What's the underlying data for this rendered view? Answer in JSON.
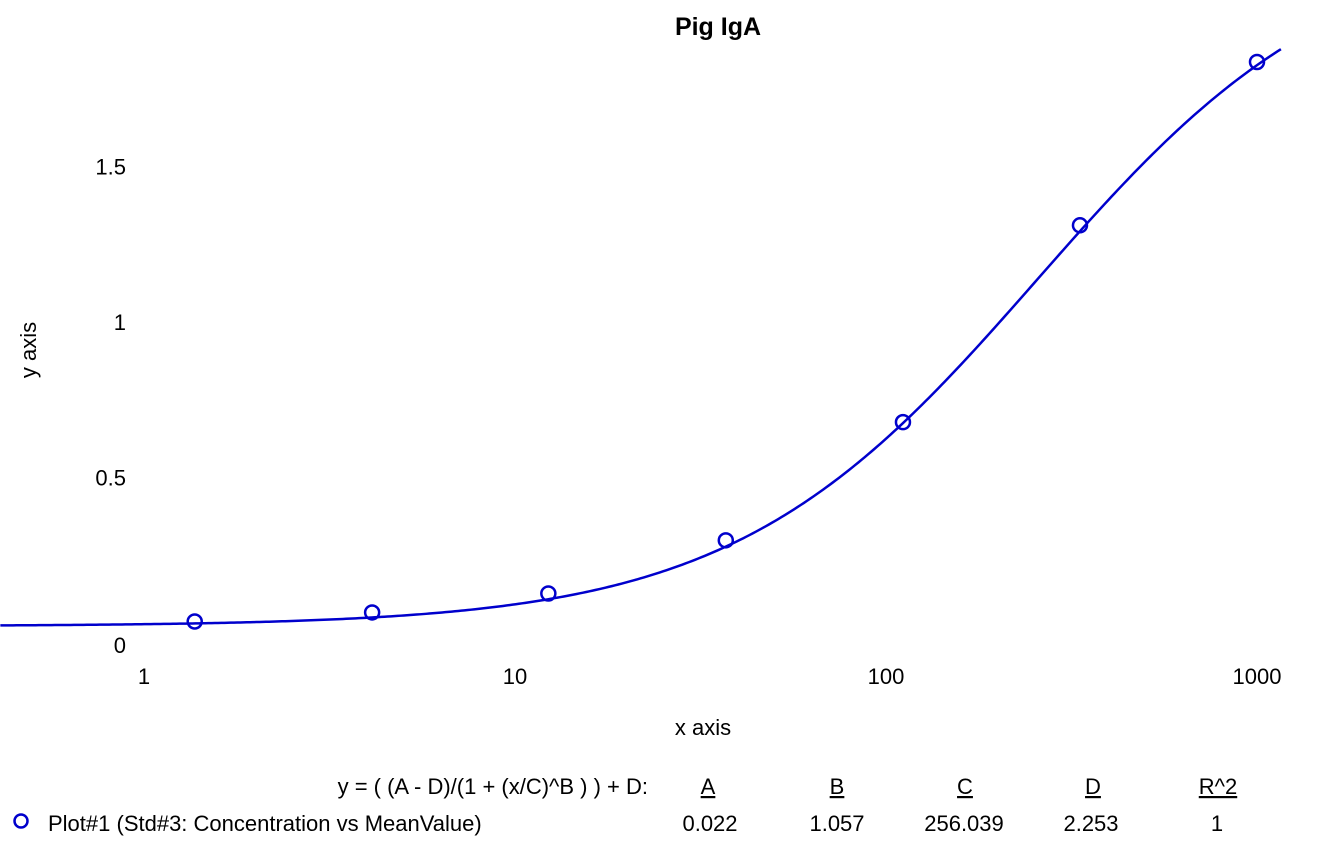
{
  "chart_data": {
    "type": "scatter",
    "title": "Pig IgA",
    "xlabel": "x axis",
    "ylabel": "y axis",
    "x_scale": "log",
    "xlim": [
      0.5,
      1200
    ],
    "ylim": [
      -0.05,
      1.95
    ],
    "x_ticks": [
      {
        "value": 1,
        "label": "1"
      },
      {
        "value": 10,
        "label": "10"
      },
      {
        "value": 100,
        "label": "100"
      },
      {
        "value": 1000,
        "label": "1000"
      }
    ],
    "y_ticks": [
      {
        "value": 0,
        "label": "0"
      },
      {
        "value": 0.5,
        "label": "0.5"
      },
      {
        "value": 1,
        "label": "1"
      },
      {
        "value": 1.5,
        "label": "1.5"
      }
    ],
    "grid": false,
    "color": "#0000cc",
    "series": [
      {
        "name": "Plot#1 (Std#3: Concentration vs MeanValue)",
        "marker": "circle",
        "x": [
          1.37,
          4.12,
          12.3,
          37.0,
          111.1,
          333.3,
          1000
        ],
        "y": [
          0.037,
          0.066,
          0.127,
          0.298,
          0.678,
          1.311,
          1.836
        ]
      }
    ],
    "fit": {
      "equation": "y = ( (A - D)/(1 + (x/C)^B ) ) + D:",
      "headers": [
        "A",
        "B",
        "C",
        "D",
        "R^2"
      ],
      "values": [
        "0.022",
        "1.057",
        "256.039",
        "2.253",
        "1"
      ],
      "A": 0.022,
      "B": 1.057,
      "C": 256.039,
      "D": 2.253
    }
  }
}
